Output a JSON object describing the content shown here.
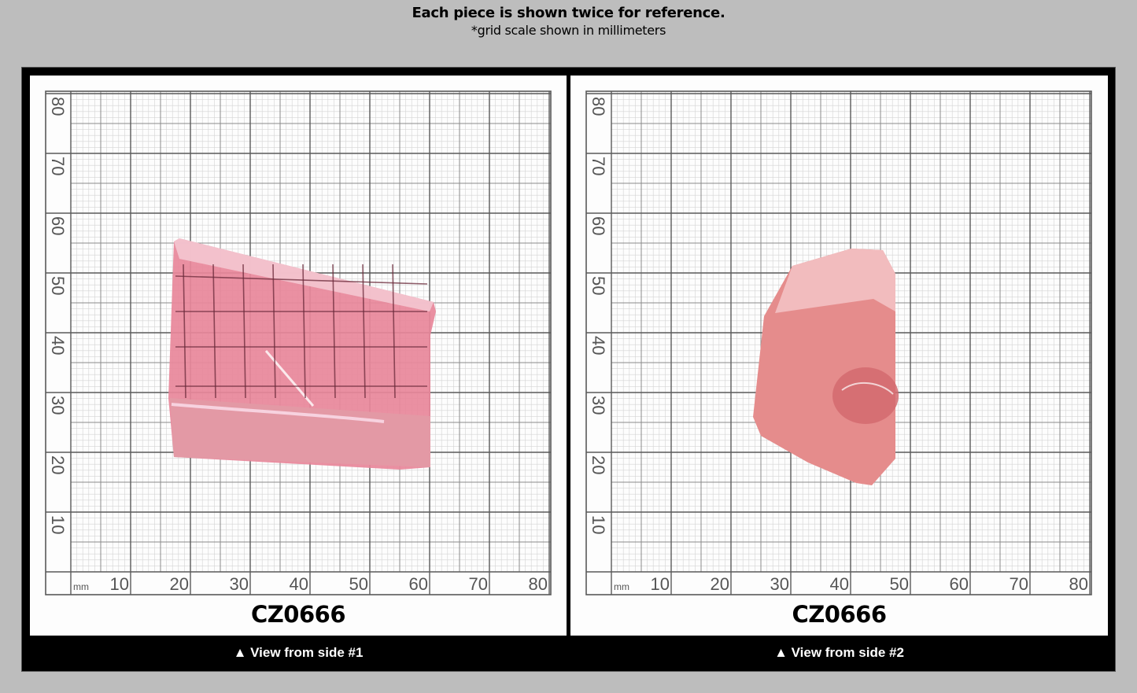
{
  "header": {
    "title": "Each piece is shown twice for reference.",
    "subtitle": "*grid scale shown in millimeters"
  },
  "grid": {
    "unit_label": "mm",
    "x_ticks": [
      "10",
      "20",
      "30",
      "40",
      "50",
      "60",
      "70",
      "80"
    ],
    "y_ticks": [
      "80",
      "70",
      "60",
      "50",
      "40",
      "30",
      "20",
      "10"
    ]
  },
  "panels": [
    {
      "code": "CZ0666",
      "caption": "▲ View from side #1",
      "gem_color": "#e8879a"
    },
    {
      "code": "CZ0666",
      "caption": "▲ View from side #2",
      "gem_color": "#e58c8c"
    }
  ]
}
